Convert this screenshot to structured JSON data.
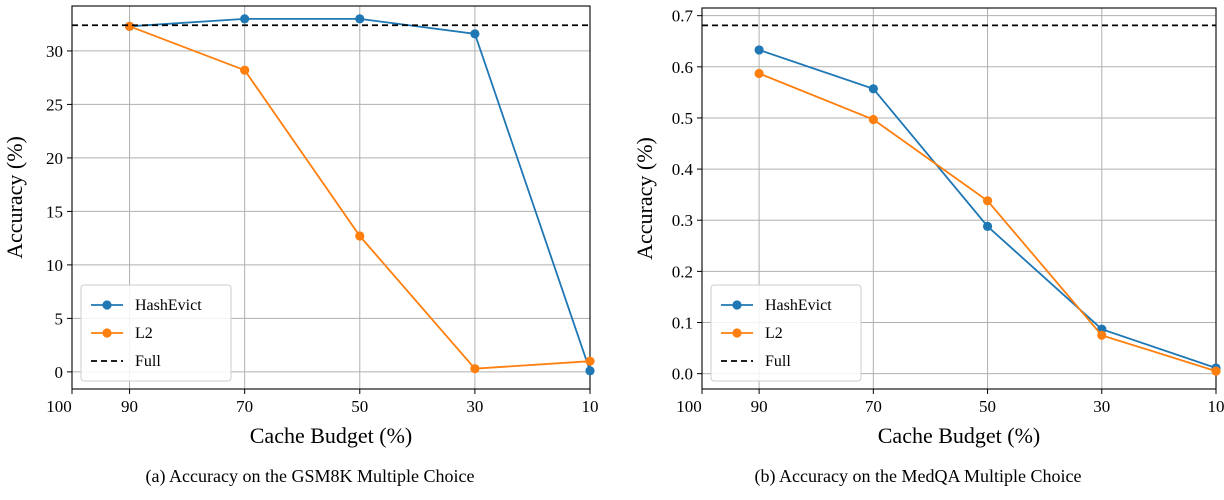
{
  "figure": {
    "captions": [
      "(a) Accuracy on the GSM8K Multiple Choice",
      "(b) Accuracy on the MedQA Multiple Choice"
    ]
  },
  "colors": {
    "hashevict": "#1f77b4",
    "l2": "#ff7f0e",
    "full": "#000000",
    "grid": "#b0b0b0"
  },
  "chart_data": [
    {
      "type": "line",
      "xlabel": "Cache Budget (%)",
      "ylabel": "Accuracy (%)",
      "x_reversed": true,
      "xlim": [
        100,
        10
      ],
      "ylim": [
        -1.6,
        34.2
      ],
      "x_ticks": [
        100,
        90,
        70,
        50,
        30,
        10
      ],
      "y_ticks": [
        0,
        5,
        10,
        15,
        20,
        25,
        30
      ],
      "grid": true,
      "legend_position": "lower-left",
      "x": [
        90,
        70,
        50,
        30,
        10
      ],
      "series": [
        {
          "name": "HashEvict",
          "values": [
            32.3,
            33.0,
            33.0,
            31.6,
            0.1
          ],
          "style": "line-marker"
        },
        {
          "name": "L2",
          "values": [
            32.3,
            28.2,
            12.7,
            0.3,
            1.0
          ],
          "style": "line-marker"
        },
        {
          "name": "Full",
          "value": 32.4,
          "style": "dashed-hline"
        }
      ]
    },
    {
      "type": "line",
      "xlabel": "Cache Budget (%)",
      "ylabel": "Accuracy (%)",
      "x_reversed": true,
      "xlim": [
        100,
        10
      ],
      "ylim": [
        -0.03,
        0.715
      ],
      "x_ticks": [
        100,
        90,
        70,
        50,
        30,
        10
      ],
      "y_ticks": [
        "0.0",
        "0.1",
        "0.2",
        "0.3",
        "0.4",
        "0.5",
        "0.6",
        "0.7"
      ],
      "grid": true,
      "legend_position": "lower-left",
      "x": [
        90,
        70,
        50,
        30,
        10
      ],
      "series": [
        {
          "name": "HashEvict",
          "values": [
            0.633,
            0.557,
            0.288,
            0.087,
            0.011
          ],
          "style": "line-marker"
        },
        {
          "name": "L2",
          "values": [
            0.587,
            0.497,
            0.338,
            0.075,
            0.005
          ],
          "style": "line-marker"
        },
        {
          "name": "Full",
          "value": 0.681,
          "style": "dashed-hline"
        }
      ]
    }
  ]
}
